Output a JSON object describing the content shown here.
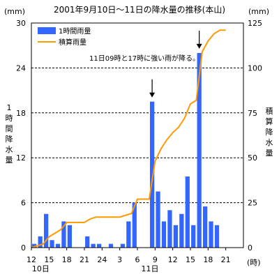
{
  "chart_data": {
    "type": "bar+line",
    "title": "2001年9月10日～11日の降水量の推移(本山)",
    "unit_left": "(mm)",
    "unit_right": "(mm)",
    "ylabel_left": "1時間降水量",
    "ylabel_right": "積算降水量",
    "x_unit": "(時)",
    "ylim_left": [
      0,
      30
    ],
    "ylim_right": [
      0,
      125
    ],
    "yticks_left": [
      "0",
      "6",
      "12",
      "18",
      "24",
      "30"
    ],
    "yticks_right": [
      "0",
      "25",
      "50",
      "75",
      "100",
      "125"
    ],
    "xtick_labels": [
      "12",
      "15",
      "18",
      "21",
      "24",
      "3",
      "6",
      "9",
      "12",
      "15",
      "18",
      "21"
    ],
    "date_labels": [
      "10日",
      "11日"
    ],
    "grid": true,
    "legend_position": "top-left",
    "annotation": "11日09時と17時に強い雨が降る。",
    "series": [
      {
        "name": "1時間雨量",
        "type": "bar",
        "color": "#3366ff",
        "hours": [
          "10日13時",
          "10日14時",
          "10日15時",
          "10日16時",
          "10日17時",
          "10日18時",
          "10日19時",
          "10日20時",
          "10日21時",
          "10日22時",
          "10日23時",
          "10日24時",
          "11日1時",
          "11日2時",
          "11日3時",
          "11日4時",
          "11日5時",
          "11日6時",
          "11日7時",
          "11日8時",
          "11日9時",
          "11日10時",
          "11日11時",
          "11日12時",
          "11日13時",
          "11日14時",
          "11日15時",
          "11日16時",
          "11日17時",
          "11日18時",
          "11日19時",
          "11日20時"
        ],
        "values": [
          0.5,
          1.5,
          4.5,
          1.0,
          0.5,
          3.5,
          3.0,
          0,
          0,
          1.5,
          0.5,
          0.5,
          0,
          0.5,
          0,
          0.5,
          3.5,
          6.0,
          0,
          0,
          19.5,
          7.5,
          3.5,
          5.0,
          3.0,
          4.5,
          9.5,
          3.0,
          26.0,
          5.5,
          3.5,
          3.0
        ]
      },
      {
        "name": "積算雨量",
        "type": "line",
        "color": "#ff9900",
        "hours": [
          "10日12時",
          "10日13時",
          "10日14時",
          "10日15時",
          "10日16時",
          "10日17時",
          "10日18時",
          "10日19時",
          "10日20時",
          "10日21時",
          "10日22時",
          "10日23時",
          "10日24時",
          "11日1時",
          "11日2時",
          "11日3時",
          "11日4時",
          "11日5時",
          "11日6時",
          "11日7時",
          "11日8時",
          "11日9時",
          "11日10時",
          "11日11時",
          "11日12時",
          "11日13時",
          "11日14時",
          "11日15時",
          "11日16時",
          "11日17時",
          "11日18時",
          "11日19時",
          "11日20時",
          "11日21時"
        ],
        "values": [
          0,
          1,
          2,
          6,
          8,
          10,
          14,
          14,
          14,
          14,
          16,
          17,
          17,
          17,
          17,
          17,
          18,
          19,
          27,
          27,
          27,
          48,
          55,
          60,
          64,
          67,
          72,
          80,
          82,
          109,
          115,
          119,
          121,
          121
        ]
      }
    ]
  }
}
